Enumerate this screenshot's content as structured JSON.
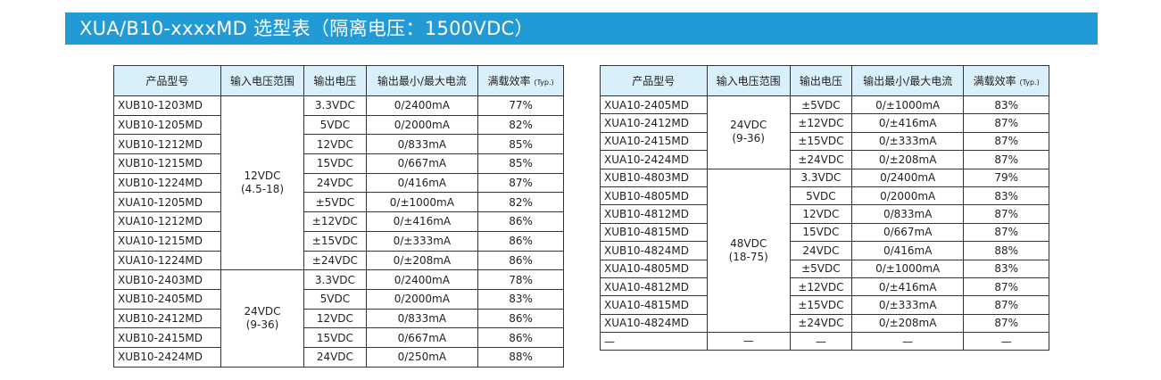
{
  "title": "XUA/B10-xxxxMD 选型表（隔离电压：1500VDC）",
  "headers": [
    "产品型号",
    "输入电压范围",
    "输出电压",
    "输出最小/最大电流",
    "满载效率"
  ],
  "typ_label": "(Typ.)",
  "left_table": {
    "groups": [
      {
        "vin": [
          "12VDC",
          "(4.5-18)"
        ],
        "rows": [
          [
            "XUB10-1203MD",
            "3.3VDC",
            "0/2400mA",
            "77%"
          ],
          [
            "XUB10-1205MD",
            "5VDC",
            "0/2000mA",
            "82%"
          ],
          [
            "XUB10-1212MD",
            "12VDC",
            "0/833mA",
            "85%"
          ],
          [
            "XUB10-1215MD",
            "15VDC",
            "0/667mA",
            "85%"
          ],
          [
            "XUB10-1224MD",
            "24VDC",
            "0/416mA",
            "87%"
          ],
          [
            "XUA10-1205MD",
            "±5VDC",
            "0/±1000mA",
            "82%"
          ],
          [
            "XUA10-1212MD",
            "±12VDC",
            "0/±416mA",
            "86%"
          ],
          [
            "XUA10-1215MD",
            "±15VDC",
            "0/±333mA",
            "86%"
          ],
          [
            "XUA10-1224MD",
            "±24VDC",
            "0/±208mA",
            "86%"
          ]
        ]
      },
      {
        "vin": [
          "24VDC",
          "(9-36)"
        ],
        "rows": [
          [
            "XUB10-2403MD",
            "3.3VDC",
            "0/2400mA",
            "78%"
          ],
          [
            "XUB10-2405MD",
            "5VDC",
            "0/2000mA",
            "83%"
          ],
          [
            "XUB10-2412MD",
            "12VDC",
            "0/833mA",
            "86%"
          ],
          [
            "XUB10-2415MD",
            "15VDC",
            "0/667mA",
            "86%"
          ],
          [
            "XUB10-2424MD",
            "24VDC",
            "0/250mA",
            "88%"
          ]
        ]
      }
    ]
  },
  "right_table": {
    "groups": [
      {
        "vin": [
          "24VDC",
          "(9-36)"
        ],
        "rows": [
          [
            "XUA10-2405MD",
            "±5VDC",
            "0/±1000mA",
            "83%"
          ],
          [
            "XUA10-2412MD",
            "±12VDC",
            "0/±416mA",
            "87%"
          ],
          [
            "XUA10-2415MD",
            "±15VDC",
            "0/±333mA",
            "87%"
          ],
          [
            "XUA10-2424MD",
            "±24VDC",
            "0/±208mA",
            "87%"
          ]
        ]
      },
      {
        "vin": [
          "48VDC",
          "(18-75)"
        ],
        "rows": [
          [
            "XUB10-4803MD",
            "3.3VDC",
            "0/2400mA",
            "79%"
          ],
          [
            "XUB10-4805MD",
            "5VDC",
            "0/2000mA",
            "83%"
          ],
          [
            "XUB10-4812MD",
            "12VDC",
            "0/833mA",
            "87%"
          ],
          [
            "XUB10-4815MD",
            "15VDC",
            "0/667mA",
            "87%"
          ],
          [
            "XUB10-4824MD",
            "24VDC",
            "0/416mA",
            "88%"
          ],
          [
            "XUA10-4805MD",
            "±5VDC",
            "0/±1000mA",
            "83%"
          ],
          [
            "XUA10-4812MD",
            "±12VDC",
            "0/±416mA",
            "87%"
          ],
          [
            "XUA10-4815MD",
            "±15VDC",
            "0/±333mA",
            "87%"
          ],
          [
            "XUA10-4824MD",
            "±24VDC",
            "0/±208mA",
            "87%"
          ]
        ]
      },
      {
        "vin": [
          "—"
        ],
        "rows": [
          [
            "—",
            "—",
            "—",
            "—"
          ]
        ]
      }
    ]
  }
}
